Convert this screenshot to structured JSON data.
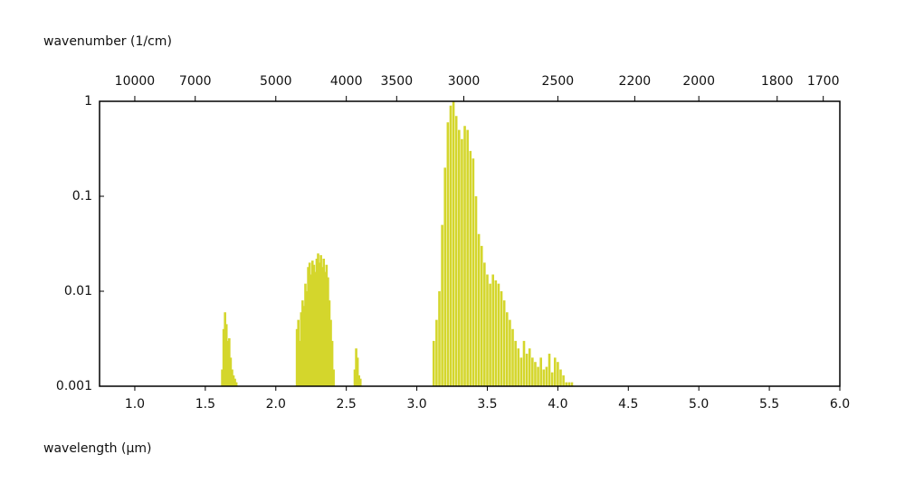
{
  "chart_data": {
    "type": "spectrum",
    "x_label_top": "wavenumber (1/cm)",
    "x_label": "wavelength (µm)",
    "color": "#d4d62c",
    "yscale": "log",
    "ylim": [
      0.001,
      1
    ],
    "yticks": [
      0.001,
      0.01,
      0.1,
      1
    ],
    "xlim": [
      0.75,
      6.0
    ],
    "xticks": [
      {
        "value": 1,
        "label": "1.0"
      },
      1.5,
      {
        "value": 2,
        "label": "2.0"
      },
      2.5,
      {
        "value": 3,
        "label": "3.0"
      },
      3.5,
      {
        "value": 4,
        "label": "4.0"
      },
      4.5,
      {
        "value": 5,
        "label": "5.0"
      },
      5.5,
      {
        "value": 6,
        "label": "6.0"
      }
    ],
    "x2ticks": [
      10000,
      7000,
      5000,
      4000,
      3500,
      3000,
      2500,
      2200,
      2000,
      1800,
      1700
    ],
    "x": [
      1.62,
      1.63,
      1.64,
      1.65,
      1.66,
      1.67,
      1.68,
      1.69,
      1.7,
      1.71,
      1.72,
      2.15,
      2.16,
      2.17,
      2.18,
      2.19,
      2.2,
      2.21,
      2.22,
      2.23,
      2.24,
      2.25,
      2.26,
      2.27,
      2.28,
      2.29,
      2.3,
      2.31,
      2.32,
      2.33,
      2.34,
      2.35,
      2.36,
      2.37,
      2.38,
      2.39,
      2.4,
      2.41,
      2.56,
      2.57,
      2.58,
      2.59,
      2.6,
      3.12,
      3.14,
      3.16,
      3.18,
      3.2,
      3.22,
      3.24,
      3.26,
      3.28,
      3.3,
      3.32,
      3.34,
      3.36,
      3.38,
      3.4,
      3.42,
      3.44,
      3.46,
      3.48,
      3.5,
      3.52,
      3.54,
      3.56,
      3.58,
      3.6,
      3.62,
      3.64,
      3.66,
      3.68,
      3.7,
      3.72,
      3.74,
      3.76,
      3.78,
      3.8,
      3.82,
      3.84,
      3.86,
      3.88,
      3.9,
      3.92,
      3.94,
      3.96,
      3.98,
      4.0,
      4.02,
      4.04,
      4.06,
      4.08,
      4.1
    ],
    "values": [
      0.0015,
      0.004,
      0.006,
      0.0045,
      0.003,
      0.0032,
      0.002,
      0.0015,
      0.0013,
      0.0012,
      0.0011,
      0.004,
      0.005,
      0.003,
      0.006,
      0.008,
      0.007,
      0.012,
      0.01,
      0.018,
      0.02,
      0.015,
      0.021,
      0.019,
      0.016,
      0.022,
      0.025,
      0.02,
      0.024,
      0.018,
      0.022,
      0.016,
      0.019,
      0.014,
      0.008,
      0.005,
      0.003,
      0.0015,
      0.0015,
      0.0025,
      0.002,
      0.0013,
      0.0012,
      0.003,
      0.005,
      0.01,
      0.05,
      0.2,
      0.6,
      0.9,
      1.0,
      0.7,
      0.5,
      0.4,
      0.55,
      0.5,
      0.3,
      0.25,
      0.1,
      0.04,
      0.03,
      0.02,
      0.015,
      0.012,
      0.015,
      0.013,
      0.012,
      0.01,
      0.008,
      0.006,
      0.005,
      0.004,
      0.003,
      0.0025,
      0.002,
      0.003,
      0.0022,
      0.0025,
      0.002,
      0.0018,
      0.0016,
      0.002,
      0.0015,
      0.0016,
      0.0022,
      0.0014,
      0.002,
      0.0018,
      0.0015,
      0.0013,
      0.0011,
      0.0011,
      0.0011
    ]
  }
}
